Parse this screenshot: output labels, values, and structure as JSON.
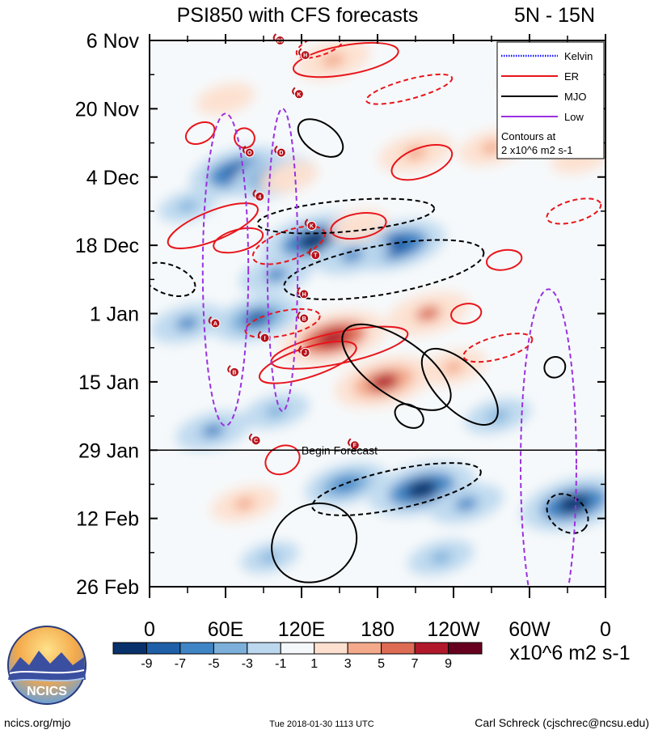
{
  "chart_data": {
    "type": "heatmap",
    "title": "PSI850 with CFS forecasts",
    "region": "5N - 15N",
    "x_ticks": [
      {
        "lon": 0,
        "label": "0"
      },
      {
        "lon": 60,
        "label": "60E"
      },
      {
        "lon": 120,
        "label": "120E"
      },
      {
        "lon": 180,
        "label": "180"
      },
      {
        "lon": 240,
        "label": "120W"
      },
      {
        "lon": 300,
        "label": "60W"
      },
      {
        "lon": 360,
        "label": "0"
      }
    ],
    "xlim": [
      0,
      360
    ],
    "y_ticks": [
      {
        "day": 0,
        "label": "6 Nov"
      },
      {
        "day": 14,
        "label": "20 Nov"
      },
      {
        "day": 28,
        "label": "4 Dec"
      },
      {
        "day": 42,
        "label": "18 Dec"
      },
      {
        "day": 56,
        "label": "1 Jan"
      },
      {
        "day": 70,
        "label": "15 Jan"
      },
      {
        "day": 84,
        "label": "29 Jan"
      },
      {
        "day": 98,
        "label": "12 Feb"
      },
      {
        "day": 112,
        "label": "26 Feb"
      }
    ],
    "ylim": [
      0,
      112
    ],
    "forecast_start_day": 84,
    "forecast_label": "Begin Forecast",
    "legend": {
      "entries": [
        {
          "label": "Kelvin",
          "color": "#1a1aff",
          "style": "dotted"
        },
        {
          "label": "ER",
          "color": "#e8151b",
          "style": "solid"
        },
        {
          "label": "MJO",
          "color": "#000000",
          "style": "solid"
        },
        {
          "label": "Low",
          "color": "#9b30e0",
          "style": "solid"
        }
      ],
      "note_line1": "Contours at",
      "note_line2": "2 x10^6 m2 s-1"
    },
    "colorbar": {
      "levels": [
        "-9",
        "-7",
        "-5",
        "-3",
        "-1",
        "1",
        "3",
        "5",
        "7",
        "9"
      ],
      "colors": [
        "#08306b",
        "#1f5fa8",
        "#3f85c6",
        "#7cb0da",
        "#bcd8ee",
        "#f4f8fb",
        "#fde0cf",
        "#f3a98a",
        "#de6b54",
        "#b2182b",
        "#67001f"
      ],
      "units": "x10^6 m2 s-1"
    },
    "anomaly_blobs": [
      {
        "lon": 70,
        "day": 27,
        "v": -8
      },
      {
        "lon": 97,
        "day": 28,
        "v": -6
      },
      {
        "lon": 130,
        "day": 41,
        "v": -9
      },
      {
        "lon": 195,
        "day": 42,
        "v": -8
      },
      {
        "lon": 160,
        "day": 44,
        "v": -5
      },
      {
        "lon": 85,
        "day": 57,
        "v": -7
      },
      {
        "lon": 30,
        "day": 58,
        "v": -5
      },
      {
        "lon": 100,
        "day": 48,
        "v": -5
      },
      {
        "lon": 50,
        "day": 80,
        "v": -5
      },
      {
        "lon": 100,
        "day": 76,
        "v": -4
      },
      {
        "lon": 155,
        "day": 91,
        "v": -6
      },
      {
        "lon": 215,
        "day": 92,
        "v": -9
      },
      {
        "lon": 335,
        "day": 95,
        "v": -9
      },
      {
        "lon": 250,
        "day": 95,
        "v": -5
      },
      {
        "lon": 230,
        "day": 106,
        "v": -4
      },
      {
        "lon": 30,
        "day": 34,
        "v": -3
      },
      {
        "lon": 150,
        "day": 60,
        "v": -3
      },
      {
        "lon": 275,
        "day": 77,
        "v": -4
      },
      {
        "lon": 95,
        "day": 106,
        "v": -3
      },
      {
        "lon": 145,
        "day": 61,
        "v": 9
      },
      {
        "lon": 185,
        "day": 70,
        "v": 8
      },
      {
        "lon": 220,
        "day": 56,
        "v": 6
      },
      {
        "lon": 145,
        "day": 4,
        "v": 5
      },
      {
        "lon": 210,
        "day": 23,
        "v": 5
      },
      {
        "lon": 270,
        "day": 22,
        "v": 4
      },
      {
        "lon": 165,
        "day": 38,
        "v": 3
      },
      {
        "lon": 110,
        "day": 28,
        "v": 3
      },
      {
        "lon": 300,
        "day": 8,
        "v": 3
      },
      {
        "lon": 75,
        "day": 95,
        "v": 4
      },
      {
        "lon": 60,
        "day": 12,
        "v": 3
      },
      {
        "lon": 340,
        "day": 24,
        "v": 3
      },
      {
        "lon": 240,
        "day": 67,
        "v": 4
      }
    ],
    "contours": [
      {
        "type": "ER",
        "dashed": false,
        "lon": 155,
        "day": 4,
        "rx": 42,
        "ry": 3,
        "rot": -10
      },
      {
        "type": "ER",
        "dashed": false,
        "lon": 50,
        "day": 38,
        "rx": 38,
        "ry": 3,
        "rot": -22
      },
      {
        "type": "ER",
        "dashed": false,
        "lon": 70,
        "day": 41,
        "rx": 20,
        "ry": 2.2,
        "rot": -15
      },
      {
        "type": "ER",
        "dashed": false,
        "lon": 165,
        "day": 38,
        "rx": 22,
        "ry": 2.5,
        "rot": -10
      },
      {
        "type": "ER",
        "dashed": false,
        "lon": 150,
        "day": 63,
        "rx": 55,
        "ry": 3.2,
        "rot": -12
      },
      {
        "type": "ER",
        "dashed": false,
        "lon": 125,
        "day": 66,
        "rx": 40,
        "ry": 3,
        "rot": -18
      },
      {
        "type": "ER",
        "dashed": false,
        "lon": 215,
        "day": 25,
        "rx": 25,
        "ry": 3,
        "rot": -20
      },
      {
        "type": "ER",
        "dashed": false,
        "lon": 40,
        "day": 19,
        "rx": 12,
        "ry": 2,
        "rot": -25
      },
      {
        "type": "ER",
        "dashed": false,
        "lon": 75,
        "day": 20,
        "rx": 8,
        "ry": 2,
        "rot": 30
      },
      {
        "type": "ER",
        "dashed": false,
        "lon": 250,
        "day": 56,
        "rx": 12,
        "ry": 2,
        "rot": -10
      },
      {
        "type": "ER",
        "dashed": false,
        "lon": 280,
        "day": 45,
        "rx": 14,
        "ry": 2,
        "rot": -10
      },
      {
        "type": "ER",
        "dashed": false,
        "lon": 105,
        "day": 86,
        "rx": 14,
        "ry": 2.8,
        "rot": -25
      },
      {
        "type": "ER",
        "dashed": true,
        "lon": 135,
        "day": 1,
        "rx": 20,
        "ry": 2,
        "rot": -20
      },
      {
        "type": "ER",
        "dashed": true,
        "lon": 205,
        "day": 10,
        "rx": 35,
        "ry": 2,
        "rot": -15
      },
      {
        "type": "ER",
        "dashed": true,
        "lon": 335,
        "day": 35,
        "rx": 22,
        "ry": 2.2,
        "rot": -15
      },
      {
        "type": "ER",
        "dashed": true,
        "lon": 110,
        "day": 42,
        "rx": 30,
        "ry": 3,
        "rot": -20
      },
      {
        "type": "ER",
        "dashed": true,
        "lon": 105,
        "day": 58,
        "rx": 30,
        "ry": 2.5,
        "rot": -12
      },
      {
        "type": "ER",
        "dashed": true,
        "lon": 275,
        "day": 63,
        "rx": 28,
        "ry": 2.3,
        "rot": -15
      },
      {
        "type": "ER",
        "dashed": true,
        "lon": 335,
        "day": 15,
        "rx": 15,
        "ry": 2,
        "rot": -10
      },
      {
        "type": "MJO",
        "dashed": false,
        "lon": 195,
        "day": 67,
        "rx": 22,
        "ry": 13,
        "rot": -55
      },
      {
        "type": "MJO",
        "dashed": false,
        "lon": 245,
        "day": 71,
        "rx": 18,
        "ry": 10,
        "rot": -45
      },
      {
        "type": "MJO",
        "dashed": false,
        "lon": 135,
        "day": 20,
        "rx": 20,
        "ry": 3,
        "rot": 35
      },
      {
        "type": "MJO",
        "dashed": false,
        "lon": 205,
        "day": 77,
        "rx": 12,
        "ry": 2.2,
        "rot": 30
      },
      {
        "type": "MJO",
        "dashed": false,
        "lon": 320,
        "day": 67,
        "rx": 8,
        "ry": 2.2,
        "rot": 50
      },
      {
        "type": "MJO",
        "dashed": false,
        "lon": 130,
        "day": 103,
        "rx": 30,
        "ry": 9,
        "rot": 60
      },
      {
        "type": "MJO",
        "dashed": true,
        "lon": 195,
        "day": 92,
        "rx": 68,
        "ry": 4,
        "rot": -12
      },
      {
        "type": "MJO",
        "dashed": true,
        "lon": 185,
        "day": 47,
        "rx": 80,
        "ry": 5,
        "rot": -10
      },
      {
        "type": "MJO",
        "dashed": true,
        "lon": 15,
        "day": 49,
        "rx": 22,
        "ry": 3,
        "rot": 20
      },
      {
        "type": "MJO",
        "dashed": true,
        "lon": 330,
        "day": 97,
        "rx": 18,
        "ry": 3.5,
        "rot": 40
      },
      {
        "type": "MJO",
        "dashed": true,
        "lon": 155,
        "day": 36,
        "rx": 70,
        "ry": 3.2,
        "rot": -5
      },
      {
        "type": "Low",
        "dashed": true,
        "lon": 60,
        "day": 47,
        "rx": 18,
        "ry": 32,
        "rot": 0
      },
      {
        "type": "Low",
        "dashed": true,
        "lon": 315,
        "day": 87,
        "rx": 22,
        "ry": 36,
        "rot": 0
      },
      {
        "type": "Low",
        "dashed": true,
        "lon": 105,
        "day": 45,
        "rx": 12,
        "ry": 31,
        "rot": 0
      }
    ],
    "storms": [
      {
        "label": "29",
        "lon": 103,
        "day": 0
      },
      {
        "label": "H",
        "lon": 123,
        "day": 3
      },
      {
        "label": "K",
        "lon": 118,
        "day": 11
      },
      {
        "label": "O",
        "lon": 79,
        "day": 23
      },
      {
        "label": "D",
        "lon": 104,
        "day": 23
      },
      {
        "label": "4",
        "lon": 87,
        "day": 32
      },
      {
        "label": "K",
        "lon": 128,
        "day": 38
      },
      {
        "label": "T",
        "lon": 131,
        "day": 44
      },
      {
        "label": "H",
        "lon": 122,
        "day": 52
      },
      {
        "label": "B",
        "lon": 122,
        "day": 57
      },
      {
        "label": "A",
        "lon": 52,
        "day": 58
      },
      {
        "label": "I",
        "lon": 91,
        "day": 61
      },
      {
        "label": "J",
        "lon": 123,
        "day": 64
      },
      {
        "label": "B",
        "lon": 67,
        "day": 68
      },
      {
        "label": "C",
        "lon": 84,
        "day": 82
      },
      {
        "label": "F",
        "lon": 162,
        "day": 83
      }
    ]
  },
  "footer": {
    "logo_text": "NCICS",
    "website": "ncics.org/mjo",
    "timestamp": "Tue 2018-01-30 1113 UTC",
    "author": "Carl Schreck (cjschrec@ncsu.edu)"
  },
  "colors": {
    "kelvin": "#1a1aff",
    "er": "#e8151b",
    "mjo": "#000000",
    "low": "#9b30e0"
  }
}
